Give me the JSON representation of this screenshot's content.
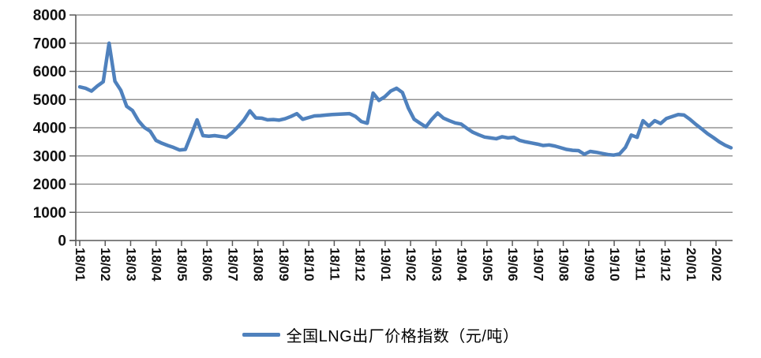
{
  "chart_data": {
    "type": "line",
    "title": "",
    "xlabel": "",
    "ylabel": "",
    "ylim": [
      0,
      8000
    ],
    "y_ticks": [
      0,
      1000,
      2000,
      3000,
      4000,
      5000,
      6000,
      7000,
      8000
    ],
    "y_tick_labels": [
      "0",
      "1000",
      "2000",
      "3000",
      "4000",
      "5000",
      "6000",
      "7000",
      "8000"
    ],
    "x_tick_labels": [
      "18/01",
      "18/02",
      "18/03",
      "18/04",
      "18/05",
      "18/06",
      "18/07",
      "18/08",
      "18/09",
      "18/10",
      "18/11",
      "18/12",
      "19/01",
      "19/02",
      "19/03",
      "19/04",
      "19/05",
      "19/06",
      "19/07",
      "19/08",
      "19/09",
      "19/10",
      "19/11",
      "19/12",
      "20/01",
      "20/02"
    ],
    "grid": "horizontal",
    "legend_position": "bottom-center",
    "series": [
      {
        "name": "全国LNG出厂价格指数（元/吨）",
        "color": "#4F81BD",
        "values": [
          5450,
          5400,
          5300,
          5480,
          5630,
          7000,
          5650,
          5330,
          4760,
          4610,
          4250,
          4010,
          3880,
          3550,
          3450,
          3370,
          3300,
          3210,
          3230,
          3750,
          4280,
          3720,
          3700,
          3720,
          3690,
          3660,
          3830,
          4040,
          4280,
          4600,
          4350,
          4340,
          4280,
          4290,
          4270,
          4320,
          4400,
          4500,
          4300,
          4360,
          4420,
          4430,
          4450,
          4470,
          4480,
          4490,
          4500,
          4400,
          4220,
          4160,
          5230,
          4970,
          5100,
          5300,
          5400,
          5250,
          4700,
          4300,
          4160,
          4030,
          4300,
          4520,
          4340,
          4250,
          4170,
          4130,
          3980,
          3840,
          3750,
          3670,
          3640,
          3610,
          3680,
          3640,
          3660,
          3550,
          3500,
          3460,
          3420,
          3370,
          3390,
          3350,
          3290,
          3230,
          3200,
          3190,
          3060,
          3160,
          3130,
          3090,
          3050,
          3030,
          3070,
          3300,
          3740,
          3660,
          4250,
          4060,
          4250,
          4150,
          4330,
          4400,
          4470,
          4450,
          4300,
          4120,
          3960,
          3790,
          3650,
          3500,
          3380,
          3290
        ]
      }
    ]
  },
  "legend": {
    "label": "全国LNG出厂价格指数（元/吨）"
  },
  "colors": {
    "line": "#4F81BD",
    "grid": "#7F7F7F",
    "axis": "#595959",
    "text": "#111111",
    "background": "#FFFFFF"
  }
}
